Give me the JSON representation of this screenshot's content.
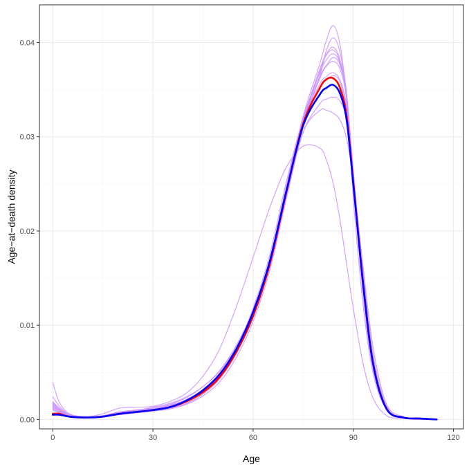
{
  "chart_data": {
    "type": "line",
    "title": "",
    "xlabel": "Age",
    "ylabel": "Age−at−death density",
    "xlim": [
      -4,
      123
    ],
    "ylim": [
      -0.001,
      0.044
    ],
    "x_ticks": [
      0,
      30,
      60,
      90,
      120
    ],
    "x_tick_labels": [
      "0",
      "30",
      "60",
      "90",
      "120"
    ],
    "y_ticks": [
      0.0,
      0.01,
      0.02,
      0.03,
      0.04
    ],
    "y_tick_labels": [
      "0.00",
      "0.01",
      "0.02",
      "0.03",
      "0.04"
    ],
    "grid": true,
    "legend": "none",
    "colors": {
      "individual": "#c993ff",
      "red_series": "#ff0000",
      "blue_series": "#0000ff",
      "grid_major": "#ebebeb",
      "grid_minor": "#f5f5f5",
      "border": "#333333"
    },
    "series": [
      {
        "role": "individual",
        "x": [
          0,
          2,
          5,
          10,
          15,
          20,
          25,
          30,
          35,
          40,
          45,
          50,
          55,
          60,
          65,
          70,
          75,
          80,
          82,
          84,
          86,
          88,
          90,
          93,
          96,
          100,
          105,
          110,
          115
        ],
        "values": [
          0.0018,
          0.0011,
          0.0005,
          0.0003,
          0.0004,
          0.0008,
          0.0009,
          0.0011,
          0.0015,
          0.0021,
          0.0032,
          0.0048,
          0.0075,
          0.0112,
          0.0165,
          0.024,
          0.031,
          0.0365,
          0.0392,
          0.0405,
          0.039,
          0.0345,
          0.025,
          0.013,
          0.0052,
          0.001,
          0.0002,
          0.0001,
          0.0
        ]
      },
      {
        "role": "individual",
        "x": [
          0,
          2,
          5,
          10,
          15,
          20,
          25,
          30,
          35,
          40,
          45,
          50,
          55,
          60,
          65,
          70,
          75,
          80,
          82,
          84,
          86,
          88,
          90,
          93,
          96,
          100,
          105,
          110,
          115
        ],
        "values": [
          0.0012,
          0.0008,
          0.0004,
          0.0002,
          0.0004,
          0.0007,
          0.0009,
          0.0011,
          0.0014,
          0.002,
          0.003,
          0.0046,
          0.0073,
          0.0112,
          0.0168,
          0.0248,
          0.0322,
          0.0378,
          0.0403,
          0.0418,
          0.0398,
          0.034,
          0.0235,
          0.012,
          0.0048,
          0.001,
          0.0002,
          0.0001,
          0.0
        ]
      },
      {
        "role": "individual",
        "x": [
          0,
          2,
          5,
          10,
          15,
          20,
          25,
          30,
          35,
          40,
          45,
          50,
          55,
          60,
          65,
          70,
          75,
          80,
          82,
          84,
          86,
          88,
          90,
          93,
          96,
          100,
          105,
          110,
          115
        ],
        "values": [
          0.0015,
          0.001,
          0.0004,
          0.0002,
          0.0003,
          0.0006,
          0.0008,
          0.001,
          0.0013,
          0.0019,
          0.003,
          0.0047,
          0.0076,
          0.0118,
          0.0175,
          0.0253,
          0.0318,
          0.0352,
          0.036,
          0.0365,
          0.0358,
          0.0328,
          0.0255,
          0.0145,
          0.006,
          0.0012,
          0.0002,
          0.0001,
          0.0
        ]
      },
      {
        "role": "individual",
        "x": [
          0,
          2,
          5,
          10,
          15,
          20,
          25,
          30,
          35,
          40,
          45,
          50,
          55,
          60,
          65,
          70,
          75,
          80,
          82,
          84,
          86,
          88,
          90,
          93,
          96,
          100,
          105,
          110,
          115
        ],
        "values": [
          0.0024,
          0.0014,
          0.0005,
          0.0002,
          0.0003,
          0.0005,
          0.0007,
          0.0009,
          0.0012,
          0.0017,
          0.0027,
          0.0043,
          0.007,
          0.0108,
          0.0162,
          0.0238,
          0.0305,
          0.0335,
          0.034,
          0.0342,
          0.0338,
          0.0318,
          0.0262,
          0.0155,
          0.0068,
          0.0014,
          0.0002,
          0.0001,
          0.0
        ]
      },
      {
        "role": "individual",
        "x": [
          0,
          2,
          5,
          10,
          15,
          20,
          25,
          30,
          35,
          40,
          45,
          50,
          55,
          60,
          65,
          70,
          75,
          80,
          82,
          84,
          86,
          88,
          90,
          93,
          96,
          100,
          105,
          110,
          115
        ],
        "values": [
          0.001,
          0.0007,
          0.0003,
          0.0002,
          0.0004,
          0.0008,
          0.001,
          0.0012,
          0.0016,
          0.0023,
          0.0035,
          0.0052,
          0.0079,
          0.0116,
          0.0168,
          0.0245,
          0.0318,
          0.0372,
          0.0388,
          0.0395,
          0.0382,
          0.0345,
          0.0258,
          0.0138,
          0.0055,
          0.0011,
          0.0002,
          0.0001,
          0.0
        ]
      },
      {
        "role": "individual",
        "x": [
          0,
          2,
          5,
          10,
          15,
          20,
          25,
          30,
          35,
          40,
          45,
          50,
          55,
          60,
          65,
          70,
          75,
          80,
          82,
          84,
          86,
          88,
          90,
          93,
          96,
          100,
          105,
          110,
          115
        ],
        "values": [
          0.0017,
          0.001,
          0.0004,
          0.0002,
          0.0003,
          0.0006,
          0.0008,
          0.001,
          0.0013,
          0.0019,
          0.0029,
          0.0045,
          0.0072,
          0.011,
          0.0165,
          0.0242,
          0.0315,
          0.0362,
          0.0375,
          0.038,
          0.0372,
          0.034,
          0.0262,
          0.0145,
          0.006,
          0.0012,
          0.0002,
          0.0001,
          0.0
        ]
      },
      {
        "role": "individual",
        "x": [
          0,
          2,
          5,
          10,
          15,
          20,
          25,
          30,
          35,
          40,
          45,
          50,
          55,
          60,
          65,
          70,
          75,
          80,
          82,
          84,
          86,
          88,
          90,
          93,
          96,
          100,
          105,
          110,
          115
        ],
        "values": [
          0.0013,
          0.0009,
          0.0004,
          0.0002,
          0.0004,
          0.0007,
          0.0009,
          0.0011,
          0.0014,
          0.002,
          0.003,
          0.0046,
          0.0074,
          0.0114,
          0.017,
          0.0248,
          0.032,
          0.0368,
          0.0382,
          0.0388,
          0.0378,
          0.0343,
          0.026,
          0.0142,
          0.0058,
          0.0011,
          0.0002,
          0.0001,
          0.0
        ]
      },
      {
        "role": "individual",
        "x": [
          0,
          2,
          5,
          10,
          15,
          20,
          25,
          30,
          35,
          40,
          45,
          50,
          55,
          60,
          65,
          70,
          75,
          80,
          82,
          84,
          86,
          88,
          90,
          93,
          96,
          100,
          105,
          110,
          115
        ],
        "values": [
          0.0016,
          0.001,
          0.0004,
          0.0002,
          0.0003,
          0.0006,
          0.0007,
          0.0009,
          0.0011,
          0.0016,
          0.0025,
          0.004,
          0.0066,
          0.0104,
          0.0158,
          0.0235,
          0.0305,
          0.0328,
          0.0328,
          0.0325,
          0.0318,
          0.0298,
          0.0255,
          0.016,
          0.0075,
          0.0016,
          0.0003,
          0.0001,
          0.0
        ]
      },
      {
        "role": "individual",
        "x": [
          0,
          2,
          5,
          10,
          15,
          20,
          25,
          30,
          35,
          40,
          45,
          50,
          55,
          60,
          65,
          70,
          75,
          80,
          82,
          84,
          86,
          88,
          90,
          93,
          96,
          100,
          105,
          110,
          115
        ],
        "values": [
          0.0011,
          0.0007,
          0.0003,
          0.0002,
          0.0004,
          0.0008,
          0.001,
          0.0013,
          0.0017,
          0.0024,
          0.0035,
          0.0051,
          0.0077,
          0.0114,
          0.0166,
          0.0242,
          0.0315,
          0.037,
          0.0387,
          0.0392,
          0.038,
          0.0342,
          0.0255,
          0.0137,
          0.0054,
          0.0011,
          0.0002,
          0.0001,
          0.0
        ]
      },
      {
        "role": "individual",
        "x": [
          0,
          2,
          5,
          10,
          15,
          20,
          25,
          30,
          35,
          40,
          45,
          50,
          55,
          60,
          65,
          70,
          75,
          80,
          82,
          84,
          86,
          88,
          90,
          93,
          96,
          100,
          105,
          110,
          115
        ],
        "values": [
          0.0019,
          0.0012,
          0.0005,
          0.0002,
          0.0003,
          0.0005,
          0.0007,
          0.0009,
          0.0012,
          0.0017,
          0.0027,
          0.0044,
          0.0071,
          0.0111,
          0.0167,
          0.0246,
          0.0318,
          0.0356,
          0.0364,
          0.0368,
          0.036,
          0.0333,
          0.026,
          0.015,
          0.0064,
          0.0013,
          0.0002,
          0.0001,
          0.0
        ]
      },
      {
        "role": "individual",
        "x": [
          0,
          2,
          5,
          10,
          15,
          20,
          25,
          30,
          35,
          40,
          45,
          50,
          55,
          60,
          65,
          70,
          75,
          80,
          82,
          84,
          86,
          88,
          90,
          93,
          96,
          100,
          105,
          110,
          115
        ],
        "values": [
          0.0014,
          0.0009,
          0.0004,
          0.0002,
          0.0004,
          0.0007,
          0.0009,
          0.0011,
          0.0015,
          0.0021,
          0.0032,
          0.0049,
          0.0076,
          0.0115,
          0.0169,
          0.0247,
          0.0319,
          0.0364,
          0.0376,
          0.0384,
          0.0376,
          0.0344,
          0.0264,
          0.0146,
          0.0059,
          0.0012,
          0.0002,
          0.0001,
          0.0
        ]
      },
      {
        "role": "individual",
        "x": [
          0,
          2,
          5,
          10,
          15,
          20,
          25,
          30,
          35,
          40,
          45,
          50,
          55,
          60,
          65,
          70,
          75,
          80,
          82,
          84,
          86,
          88,
          90,
          93,
          96,
          100,
          105,
          110,
          115
        ],
        "values": [
          0.0039,
          0.0018,
          0.0006,
          0.0003,
          0.0006,
          0.0012,
          0.0013,
          0.0014,
          0.0019,
          0.0028,
          0.0046,
          0.0075,
          0.012,
          0.0172,
          0.0225,
          0.0268,
          0.029,
          0.0288,
          0.0275,
          0.025,
          0.0212,
          0.0165,
          0.0118,
          0.0058,
          0.0022,
          0.0004,
          0.0001,
          0.0,
          0.0
        ]
      },
      {
        "role": "red_series",
        "x": [
          0,
          2,
          5,
          10,
          15,
          20,
          25,
          30,
          35,
          40,
          45,
          50,
          55,
          60,
          65,
          70,
          75,
          80,
          82,
          84,
          86,
          88,
          90,
          93,
          96,
          100,
          105,
          110,
          115
        ],
        "values": [
          0.0006,
          0.0006,
          0.0003,
          0.0002,
          0.0003,
          0.0006,
          0.0008,
          0.001,
          0.0013,
          0.0019,
          0.0029,
          0.0045,
          0.0072,
          0.011,
          0.0165,
          0.0242,
          0.0314,
          0.0352,
          0.0361,
          0.0362,
          0.0352,
          0.0322,
          0.0252,
          0.0142,
          0.0058,
          0.0011,
          0.0002,
          0.0001,
          0.0
        ]
      },
      {
        "role": "blue_series",
        "x": [
          0,
          2,
          5,
          10,
          15,
          20,
          25,
          30,
          35,
          40,
          45,
          50,
          55,
          60,
          65,
          70,
          75,
          80,
          82,
          84,
          86,
          88,
          90,
          93,
          96,
          100,
          105,
          110,
          115
        ],
        "values": [
          0.0005,
          0.0005,
          0.0003,
          0.0002,
          0.0003,
          0.0006,
          0.0008,
          0.001,
          0.0013,
          0.002,
          0.0031,
          0.0048,
          0.0075,
          0.0114,
          0.0168,
          0.0243,
          0.0312,
          0.0345,
          0.0352,
          0.0355,
          0.0346,
          0.0318,
          0.025,
          0.0142,
          0.0058,
          0.0011,
          0.0002,
          0.0001,
          0.0
        ]
      }
    ]
  }
}
